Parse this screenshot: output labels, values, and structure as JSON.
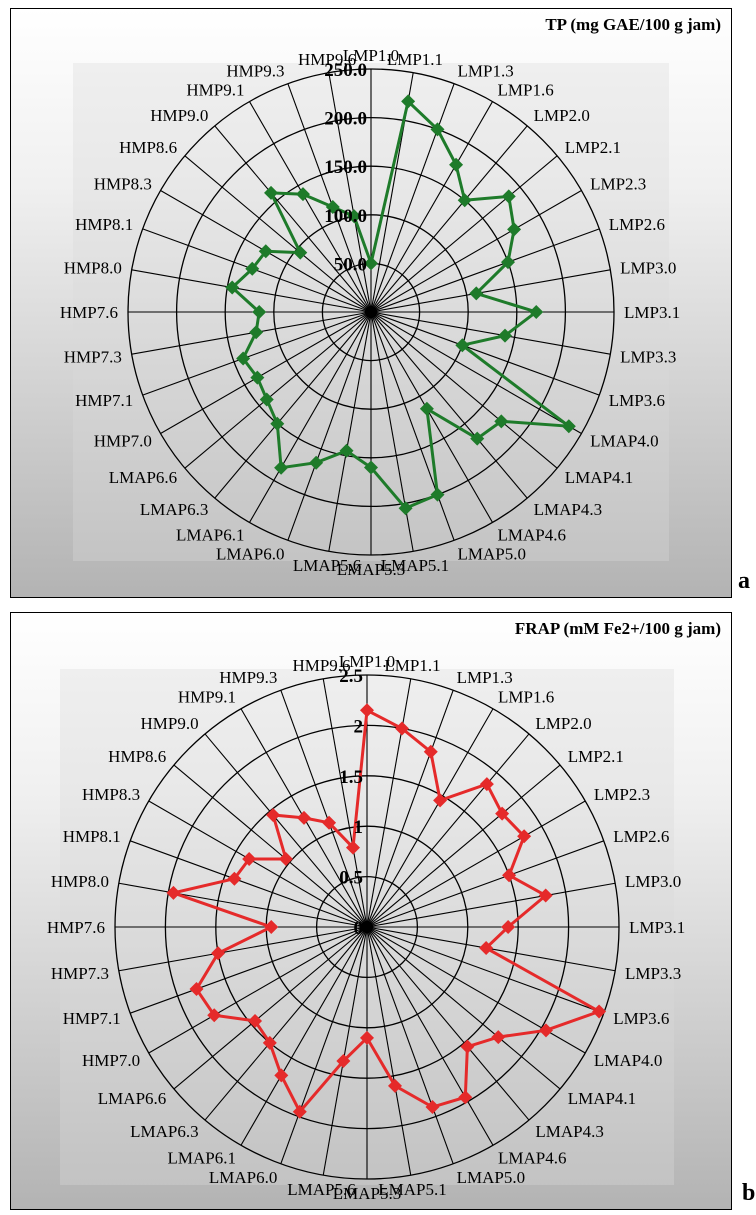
{
  "chart_data": [
    {
      "type": "radar",
      "title": "TP (mg GAE/100 g jam)",
      "panel_letter": "a",
      "categories": [
        "LMP1.0",
        "LMP1.1",
        "LMP1.3",
        "LMP1.6",
        "LMP2.0",
        "LMP2.1",
        "LMP2.3",
        "LMP2.6",
        "LMP3.0",
        "LMP3.1",
        "LMP3.3",
        "LMP3.6",
        "LMAP4.0",
        "LMAP4.1",
        "LMAP4.3",
        "LMAP4.6",
        "LMAP5.0",
        "LMAP5.1",
        "LMAP5.3",
        "LMAP5.6",
        "LMAP6.0",
        "LMAP6.1",
        "LMAP6.3",
        "LMAP6.6",
        "HMP7.0",
        "HMP7.1",
        "HMP7.3",
        "HMP7.6",
        "HMP8.0",
        "HMP8.1",
        "HMP8.3",
        "HMP8.6",
        "HMP9.0",
        "HMP9.1",
        "HMP9.3",
        "HMP9.6"
      ],
      "series": [
        {
          "color": "#1e7b2a",
          "values": [
            50,
            220,
            200,
            175,
            150,
            185,
            170,
            150,
            110,
            170,
            140,
            100,
            235,
            175,
            170,
            115,
            200,
            205,
            160,
            145,
            165,
            185,
            150,
            140,
            135,
            140,
            120,
            115,
            145,
            130,
            125,
            95,
            160,
            140,
            115,
            100
          ]
        }
      ],
      "rlim": [
        0,
        250
      ],
      "ticks": [
        0,
        50,
        100,
        150,
        200,
        250
      ],
      "tick_labels": [
        "",
        "50.0",
        "100.0",
        "150.0",
        "200.0",
        "250.0"
      ],
      "grid": true
    },
    {
      "type": "radar",
      "title": "FRAP (mM Fe2+/100 g jam)",
      "panel_letter": "b",
      "categories": [
        "LMP1.0",
        "LMP1.1",
        "LMP1.3",
        "LMP1.6",
        "LMP2.0",
        "LMP2.1",
        "LMP2.3",
        "LMP2.6",
        "LMP3.0",
        "LMP3.1",
        "LMP3.3",
        "LMP3.6",
        "LMAP4.0",
        "LMAP4.1",
        "LMAP4.3",
        "LMAP4.6",
        "LMAP5.0",
        "LMAP5.1",
        "LMAP5.3",
        "LMAP5.6",
        "LMAP6.0",
        "LMAP6.1",
        "LMAP6.3",
        "LMAP6.6",
        "HMP7.0",
        "HMP7.1",
        "HMP7.3",
        "HMP7.6",
        "HMP8.0",
        "HMP8.1",
        "HMP8.3",
        "HMP8.6",
        "HMP9.0",
        "HMP9.1",
        "HMP9.3",
        "HMP9.6"
      ],
      "series": [
        {
          "color": "#e52a2a",
          "values": [
            2.15,
            2.0,
            1.85,
            1.45,
            1.85,
            1.75,
            1.8,
            1.5,
            1.8,
            1.4,
            1.2,
            2.45,
            2.05,
            1.7,
            1.55,
            1.95,
            1.9,
            1.6,
            1.1,
            1.35,
            1.95,
            1.7,
            1.5,
            1.45,
            1.75,
            1.8,
            1.5,
            0.95,
            1.95,
            1.4,
            1.35,
            1.05,
            1.45,
            1.25,
            1.1,
            0.8
          ]
        }
      ],
      "rlim": [
        0,
        2.5
      ],
      "ticks": [
        0,
        0.5,
        1,
        1.5,
        2,
        2.5
      ],
      "tick_labels": [
        "0",
        "0.5",
        "1",
        "1.5",
        "2",
        "2.5"
      ],
      "grid": true
    }
  ]
}
